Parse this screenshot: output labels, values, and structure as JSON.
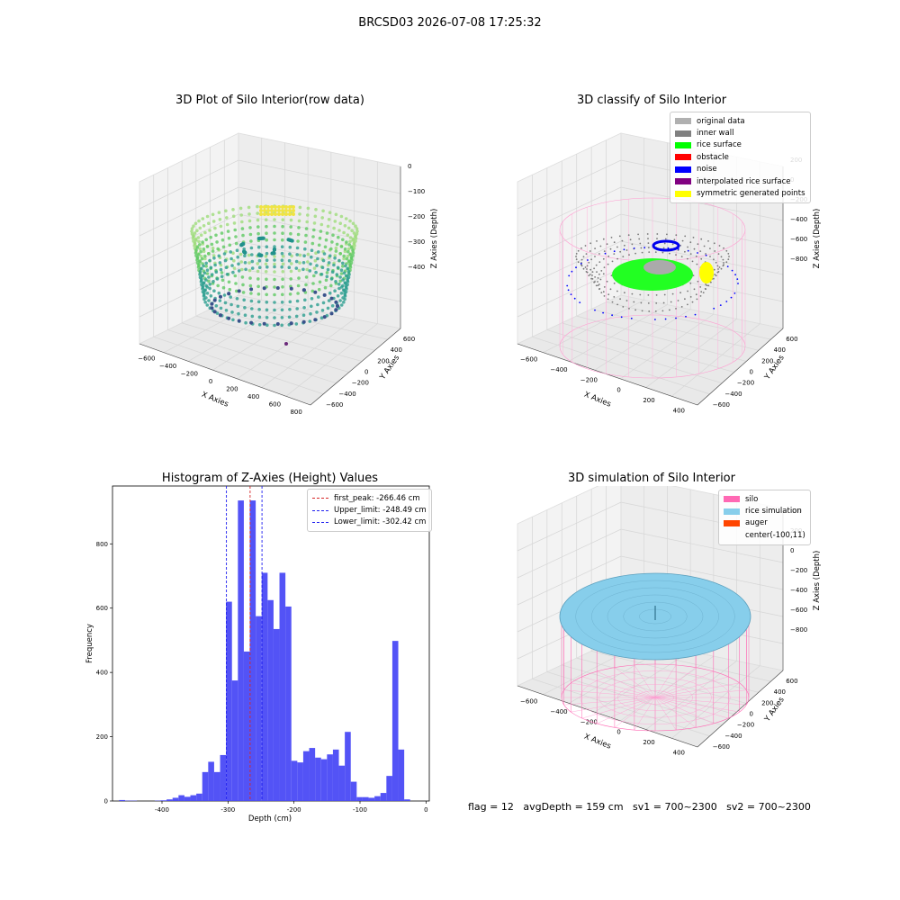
{
  "suptitle": "BRCSD03 2026-07-08 17:25:32",
  "footer": "flag = 12   avgDepth = 159 cm   sv1 = 700~2300   sv2 = 700~2300",
  "colors": {
    "hist": "#4a4af5",
    "peak": "#d62728",
    "limit": "#1f1ff0",
    "silo": "#ff69b4",
    "rice": "#87ceeb",
    "auger": "#ff4500"
  },
  "panels": {
    "p1": {
      "title": "3D Plot of Silo Interior(row data)",
      "xlabel": "X Axies",
      "ylabel": "Y Axies",
      "zlabel": "Z Axies (Depth)",
      "xticks": [
        "−600",
        "−400",
        "−200",
        "0",
        "200",
        "400",
        "600",
        "800"
      ],
      "yticks": [
        "600",
        "400",
        "200",
        "0",
        "−200",
        "−400",
        "−600"
      ],
      "zticks": [
        "0",
        "−100",
        "−200",
        "−300",
        "−400"
      ]
    },
    "p2": {
      "title": "3D classify of Silo Interior",
      "xlabel": "X Axies",
      "ylabel": "Y Axies",
      "zlabel": "Z Axies (Depth)",
      "xticks": [
        "−600",
        "−400",
        "−200",
        "0",
        "200",
        "400"
      ],
      "yticks": [
        "600",
        "400",
        "200",
        "0",
        "−200",
        "−400",
        "−600"
      ],
      "zticks": [
        "200",
        "0",
        "−200",
        "−400",
        "−600",
        "−800"
      ],
      "legend": [
        {
          "label": "original data",
          "color": "#b0b0b0"
        },
        {
          "label": "inner wall",
          "color": "#808080"
        },
        {
          "label": "rice surface",
          "color": "#00ff00"
        },
        {
          "label": "obstacle",
          "color": "#ff0000"
        },
        {
          "label": "noise",
          "color": "#0000ff"
        },
        {
          "label": "interpolated rice surface",
          "color": "#800080"
        },
        {
          "label": "symmetric generated points",
          "color": "#ffff00"
        }
      ]
    },
    "p4": {
      "title": "3D simulation of Silo Interior",
      "xlabel": "X Axies",
      "ylabel": "Y Axies",
      "zlabel": "Z Axies (Depth)",
      "xticks": [
        "−600",
        "−400",
        "−200",
        "0",
        "200",
        "400"
      ],
      "yticks": [
        "600",
        "400",
        "200",
        "0",
        "−200",
        "−400",
        "−600"
      ],
      "zticks": [
        "400",
        "200",
        "0",
        "−200",
        "−400",
        "−600",
        "−800"
      ],
      "legend": [
        {
          "label": "silo",
          "color": "#ff69b4"
        },
        {
          "label": "rice simulation",
          "color": "#87ceeb"
        },
        {
          "label": "auger",
          "color": "#ff4500"
        },
        {
          "label": "center(-100,11)",
          "color": "transparent"
        }
      ]
    }
  },
  "chart_data": {
    "type": "bar",
    "title": "Histogram of Z-Axies (Height) Values",
    "xlabel": "Depth (cm)",
    "ylabel": "Frequency",
    "xlim": [
      -475,
      5
    ],
    "ylim": [
      0,
      980
    ],
    "xticks": [
      -400,
      -300,
      -200,
      -100,
      0
    ],
    "yticks": [
      0,
      200,
      400,
      600,
      800
    ],
    "bin_start": -465,
    "bin_width": 9,
    "values": [
      3,
      1,
      1,
      0,
      0,
      0,
      1,
      2,
      5,
      10,
      18,
      13,
      18,
      23,
      90,
      122,
      90,
      143,
      620,
      375,
      935,
      465,
      935,
      575,
      710,
      625,
      535,
      710,
      605,
      125,
      120,
      155,
      165,
      135,
      130,
      145,
      160,
      110,
      215,
      60,
      12,
      12,
      10,
      15,
      25,
      78,
      498,
      160,
      5
    ],
    "vlines": [
      {
        "label": "first_peak: -266.46 cm",
        "x": -266.46,
        "color": "#d62728"
      },
      {
        "label": "Upper_limit: -248.49 cm",
        "x": -248.49,
        "color": "#1f1ff0"
      },
      {
        "label": "Lower_limit: -302.42 cm",
        "x": -302.42,
        "color": "#1f1ff0"
      }
    ]
  }
}
